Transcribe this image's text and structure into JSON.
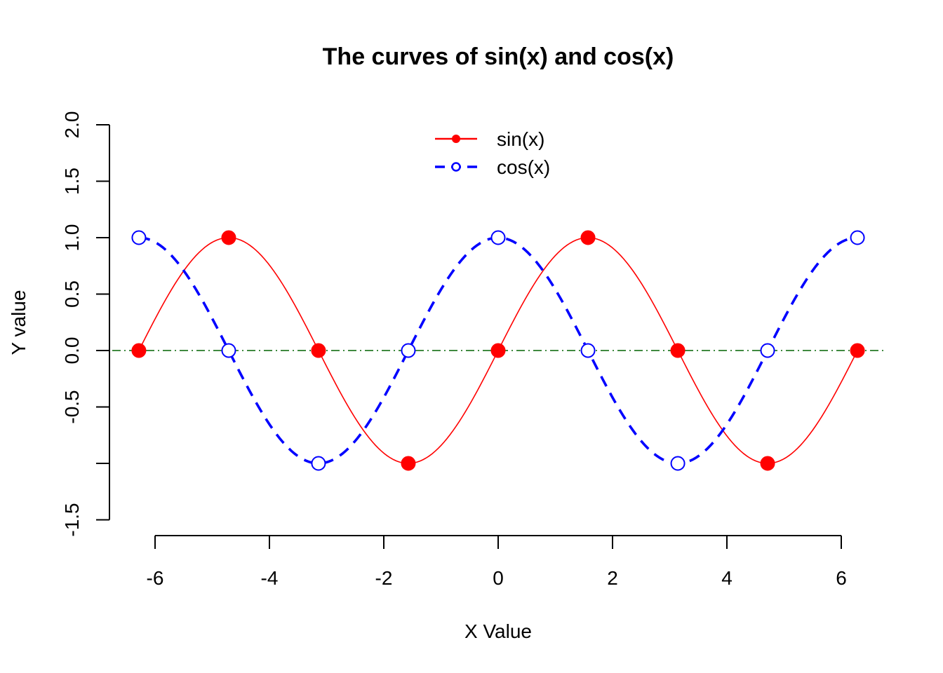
{
  "chart_data": {
    "type": "line",
    "title": "The curves of sin(x) and cos(x)",
    "xlabel": "X Value",
    "ylabel": "Y value",
    "xlim": [
      -6.6,
      6.6
    ],
    "ylim": [
      -1.5,
      2.0
    ],
    "x_ticks": [
      -6,
      -4,
      -2,
      0,
      2,
      4,
      6
    ],
    "x_tick_labels": [
      "-6",
      "-4",
      "-2",
      "0",
      "2",
      "4",
      "6"
    ],
    "y_ticks": [
      -1.5,
      -1.0,
      -0.5,
      0.0,
      0.5,
      1.0,
      1.5,
      2.0
    ],
    "y_tick_labels": [
      "-1.5",
      "",
      "-0.5",
      "0.0",
      "0.5",
      "1.0",
      "1.5",
      "2.0"
    ],
    "reference_line": {
      "y": 0,
      "color": "#006400",
      "style": "dotdash"
    },
    "legend_position": "top",
    "grid": false,
    "series": [
      {
        "name": "sin(x)",
        "color": "#ff0000",
        "line_style": "solid",
        "marker": "filled-circle",
        "curve": "sin",
        "x": [
          -6.283,
          -4.712,
          -3.142,
          -1.571,
          0,
          1.571,
          3.142,
          4.712,
          6.283
        ],
        "y": [
          0,
          1,
          0,
          -1,
          0,
          1,
          0,
          -1,
          0
        ]
      },
      {
        "name": "cos(x)",
        "color": "#0000ff",
        "line_style": "dashed",
        "marker": "open-circle",
        "curve": "cos",
        "x": [
          -6.283,
          -4.712,
          -3.142,
          -1.571,
          0,
          1.571,
          3.142,
          4.712,
          6.283
        ],
        "y": [
          1,
          0,
          -1,
          0,
          1,
          0,
          -1,
          0,
          1
        ]
      }
    ]
  }
}
